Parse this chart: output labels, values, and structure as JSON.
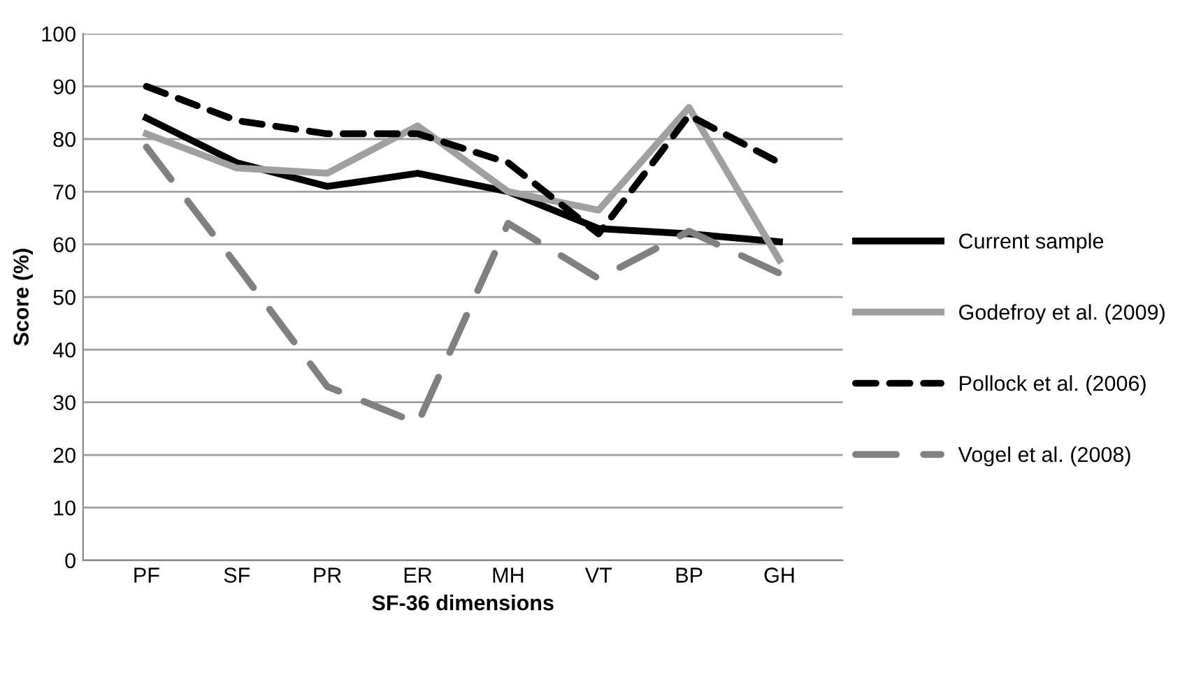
{
  "chart_data": {
    "type": "line",
    "xlabel": "SF-36 dimensions",
    "ylabel": "Score (%)",
    "categories": [
      "PF",
      "SF",
      "PR",
      "ER",
      "MH",
      "VT",
      "BP",
      "GH"
    ],
    "series": [
      {
        "name": "Current sample",
        "color": "#000000",
        "line_style": "solid",
        "values": [
          84,
          75.5,
          71,
          73.5,
          70,
          63,
          62,
          60.5
        ]
      },
      {
        "name": "Godefroy et al. (2009)",
        "color": "#a0a0a0",
        "line_style": "solid",
        "values": [
          81,
          74.5,
          73.5,
          82.5,
          70,
          66.5,
          86,
          57
        ]
      },
      {
        "name": "Pollock et al. (2006)",
        "color": "#000000",
        "line_style": "dashed",
        "values": [
          90,
          83.5,
          81,
          81,
          75.5,
          62,
          84.5,
          75.5
        ]
      },
      {
        "name": "Vogel et al. (2008)",
        "color": "#808080",
        "line_style": "dashed",
        "values": [
          78.5,
          56,
          33,
          26,
          64,
          53.5,
          62.5,
          54.5
        ]
      }
    ],
    "ylim": [
      0,
      100
    ],
    "yticks": [
      0,
      10,
      20,
      30,
      40,
      50,
      60,
      70,
      80,
      90,
      100
    ],
    "grid": "y",
    "legend": "right",
    "marker": "none"
  }
}
